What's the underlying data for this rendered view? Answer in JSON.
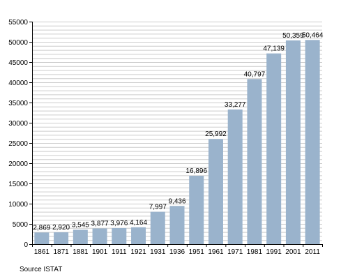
{
  "chart_data": {
    "type": "bar",
    "categories": [
      "1861",
      "1871",
      "1881",
      "1901",
      "1911",
      "1921",
      "1931",
      "1936",
      "1951",
      "1961",
      "1971",
      "1981",
      "1991",
      "2001",
      "2011"
    ],
    "values": [
      2869,
      2920,
      3545,
      3877,
      3976,
      4164,
      7997,
      9436,
      16896,
      25992,
      33277,
      40797,
      47139,
      50359,
      50464
    ],
    "data_labels": [
      "2,869",
      "2,920",
      "3,545",
      "3,877",
      "3,976",
      "4,164",
      "7,997",
      "9,436",
      "16,896",
      "25,992",
      "33,277",
      "40,797",
      "47,139",
      "50,359",
      "50,464"
    ],
    "ylim": [
      0,
      55000
    ],
    "y_ticks": [
      0,
      5000,
      10000,
      15000,
      20000,
      25000,
      30000,
      35000,
      40000,
      45000,
      50000,
      55000
    ],
    "title": "",
    "xlabel": "",
    "ylabel": "",
    "grid": true,
    "colors": {
      "bar": "#9ab3cc",
      "grid": "#cccccc",
      "axis": "#000000"
    }
  },
  "source": "Source ISTAT"
}
